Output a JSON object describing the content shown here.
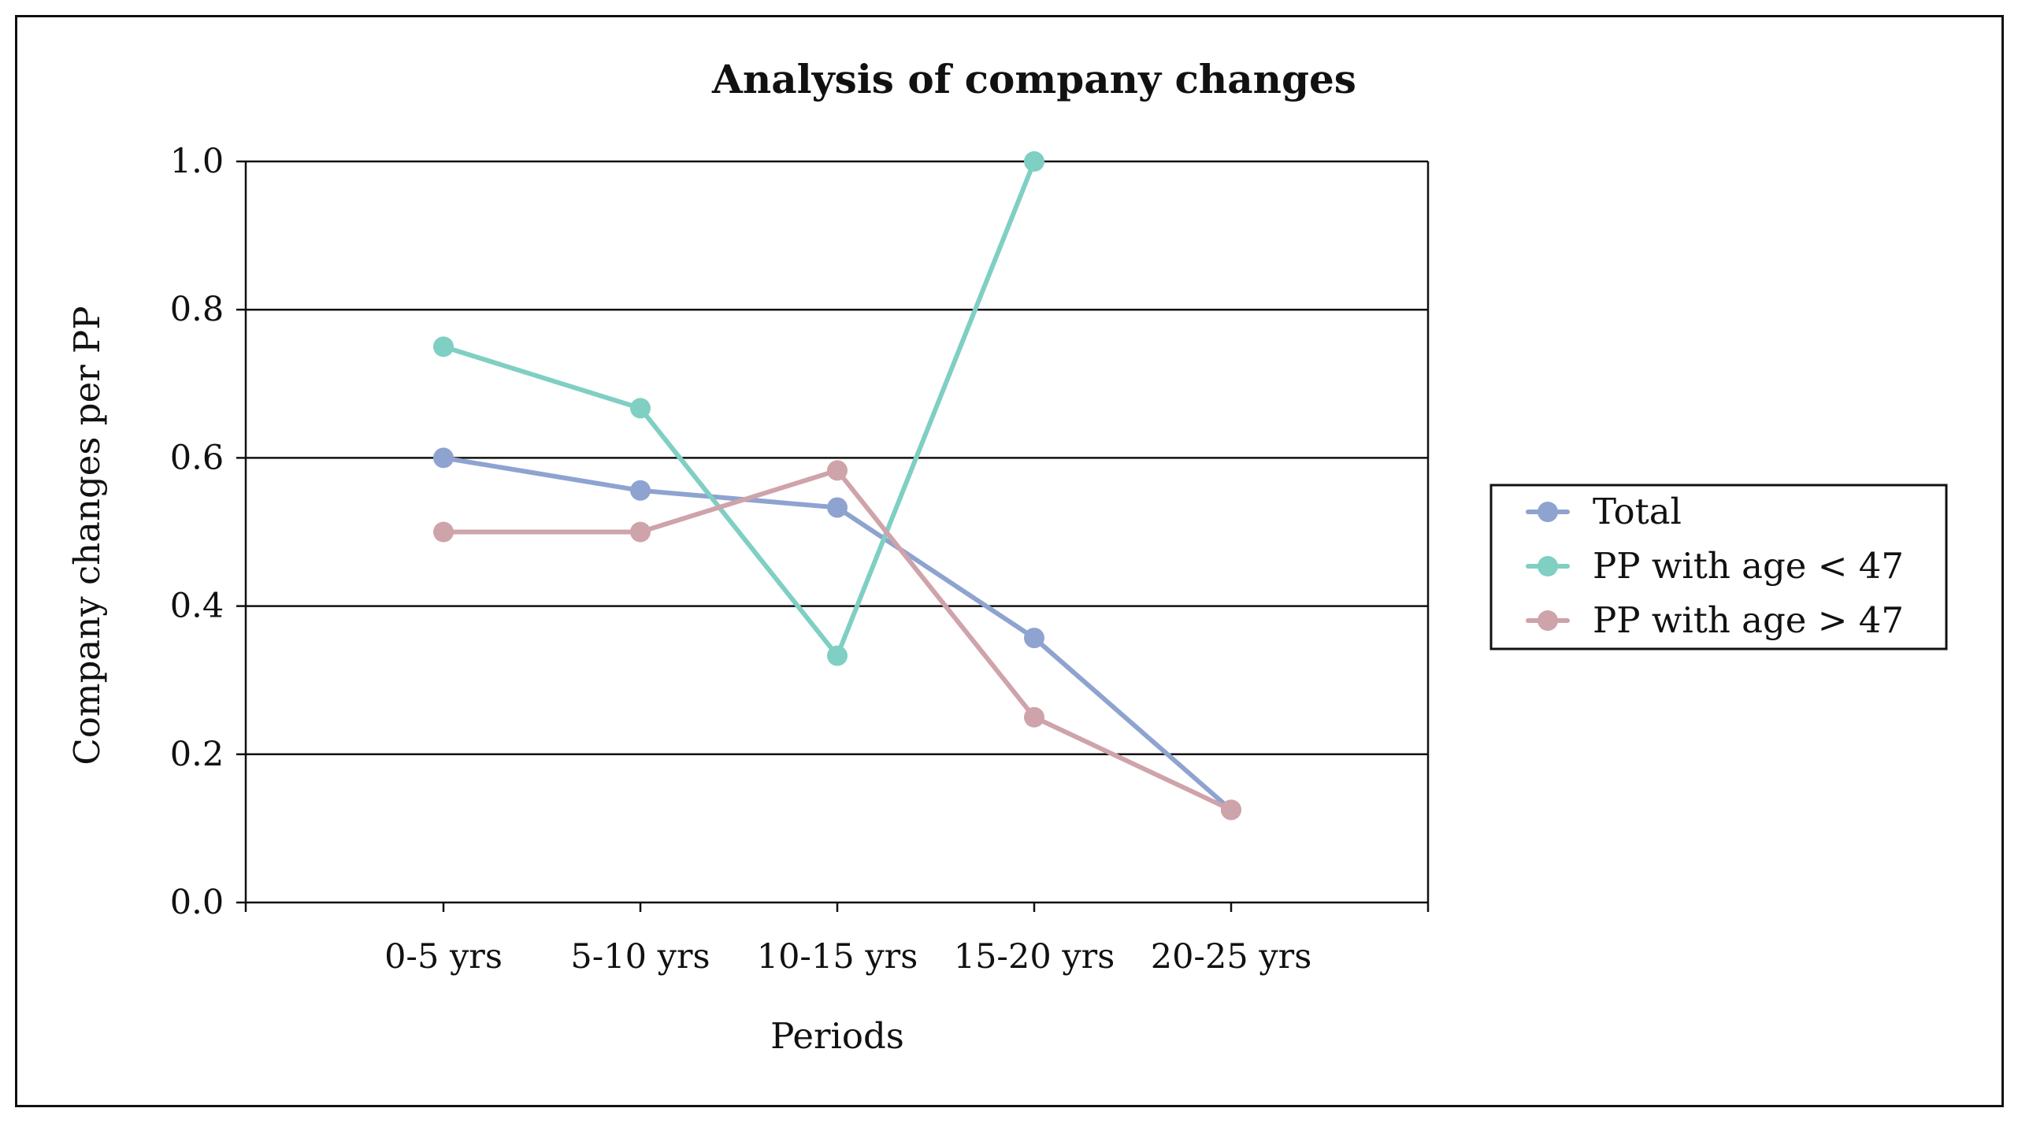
{
  "chart_data": {
    "type": "line",
    "title": "Analysis of company changes",
    "xlabel": "Periods",
    "ylabel": "Company changes per PP",
    "categories": [
      "0-5 yrs",
      "5-10 yrs",
      "10-15 yrs",
      "15-20 yrs",
      "20-25 yrs"
    ],
    "ylim": [
      0.0,
      1.0
    ],
    "yticks": [
      0.0,
      0.2,
      0.4,
      0.6,
      0.8,
      1.0
    ],
    "ytick_labels": [
      "0.0",
      "0.2",
      "0.4",
      "0.6",
      "0.8",
      "1.0"
    ],
    "grid": true,
    "legend_position": "right",
    "series": [
      {
        "name": "Total",
        "color": "#8ea3cf",
        "values": [
          0.6,
          0.556,
          0.533,
          0.357,
          0.125
        ]
      },
      {
        "name": "PP with age < 47",
        "color": "#7fcfc3",
        "values": [
          0.75,
          0.667,
          0.333,
          1.0,
          null
        ]
      },
      {
        "name": "PP with age > 47",
        "color": "#cfa3aa",
        "values": [
          0.5,
          0.5,
          0.583,
          0.25,
          0.125
        ]
      }
    ]
  }
}
